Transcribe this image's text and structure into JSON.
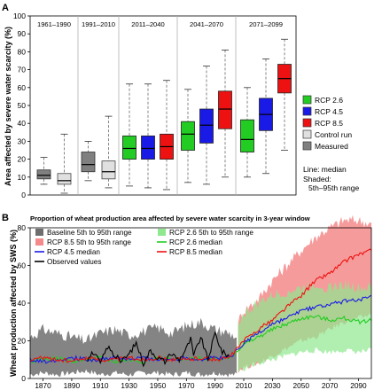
{
  "panelA": {
    "letter": "A",
    "ylabel": "Area affected by severe water scarcity (%)",
    "yticks": [
      0,
      10,
      20,
      30,
      40,
      50,
      60,
      70,
      80,
      90,
      100
    ],
    "period_labels": [
      "1961–1990",
      "1991–2010",
      "2011–2040",
      "2041–2070",
      "2071–2099"
    ],
    "legend": {
      "items": [
        {
          "label": "RCP 2.6",
          "color": "#22cc22"
        },
        {
          "label": "RCP 4.5",
          "color": "#1a1ae6"
        },
        {
          "label": "RCP 8.5",
          "color": "#ee1111"
        },
        {
          "label": "Control run",
          "color": "#e0e0e0"
        },
        {
          "label": "Measured",
          "color": "#808080"
        }
      ],
      "note_line": "Line: median",
      "note_shaded_1": "Shaded:",
      "note_shaded_2": "5th–95th range"
    }
  },
  "panelB": {
    "letter": "B",
    "title": "Proportion of wheat production area affected by severe water scarcity in 3-year window",
    "ylabel": "Wheat production affected by SWS (%)",
    "yticks": [
      0,
      20,
      40,
      60,
      80
    ],
    "xticks": [
      "1870",
      "1890",
      "1910",
      "1930",
      "1950",
      "1970",
      "1990",
      "2010",
      "2030",
      "2050",
      "2070",
      "2090"
    ],
    "legend": [
      {
        "label": "Baseline 5th to 95th range",
        "color": "#6e6e6e",
        "kind": "box"
      },
      {
        "label": "RCP 2.6 5th to 95th range",
        "color": "#8fe88f",
        "kind": "box"
      },
      {
        "label": "RCP 8.5 5th to 95th range",
        "color": "#f48a8a",
        "kind": "box"
      },
      {
        "label": "RCP 2.6 median",
        "color": "#22cc22",
        "kind": "line"
      },
      {
        "label": "RCP 4.5 median",
        "color": "#1a1ae6",
        "kind": "line"
      },
      {
        "label": "RCP 8.5 median",
        "color": "#ee1111",
        "kind": "line"
      },
      {
        "label": "Observed values",
        "color": "#000000",
        "kind": "line"
      }
    ]
  },
  "chart_data": [
    {
      "type": "box",
      "ylim": [
        0,
        100
      ],
      "groups": [
        {
          "period": "1961–1990",
          "boxes": [
            {
              "series": "Measured",
              "min": 6,
              "q1": 9,
              "median": 11,
              "q3": 14,
              "max": 21
            },
            {
              "series": "Control run",
              "min": 1,
              "q1": 6,
              "median": 8,
              "q3": 12,
              "max": 34
            }
          ]
        },
        {
          "period": "1991–2010",
          "boxes": [
            {
              "series": "Measured",
              "min": 8,
              "q1": 13,
              "median": 17,
              "q3": 24,
              "max": 30
            },
            {
              "series": "Control run",
              "min": 4,
              "q1": 9,
              "median": 13,
              "q3": 19,
              "max": 44
            }
          ]
        },
        {
          "period": "2011–2040",
          "boxes": [
            {
              "series": "RCP 2.6",
              "min": 5,
              "q1": 20,
              "median": 26,
              "q3": 33,
              "max": 62
            },
            {
              "series": "RCP 4.5",
              "min": 4,
              "q1": 20,
              "median": 26,
              "q3": 33,
              "max": 62
            },
            {
              "series": "RCP 8.5",
              "min": 3,
              "q1": 20,
              "median": 27,
              "q3": 34,
              "max": 64
            }
          ]
        },
        {
          "period": "2041–2070",
          "boxes": [
            {
              "series": "RCP 2.6",
              "min": 7,
              "q1": 25,
              "median": 34,
              "q3": 41,
              "max": 59
            },
            {
              "series": "RCP 4.5",
              "min": 6,
              "q1": 29,
              "median": 39,
              "q3": 48,
              "max": 72
            },
            {
              "series": "RCP 8.5",
              "min": 10,
              "q1": 37,
              "median": 48,
              "q3": 58,
              "max": 81
            }
          ]
        },
        {
          "period": "2071–2099",
          "boxes": [
            {
              "series": "RCP 2.6",
              "min": 10,
              "q1": 24,
              "median": 31,
              "q3": 42,
              "max": 60
            },
            {
              "series": "RCP 4.5",
              "min": 12,
              "q1": 36,
              "median": 45,
              "q3": 54,
              "max": 76
            },
            {
              "series": "RCP 8.5",
              "min": 25,
              "q1": 57,
              "median": 65,
              "q3": 73,
              "max": 87
            }
          ]
        }
      ]
    },
    {
      "type": "line",
      "xlim": [
        1861,
        2099
      ],
      "ylim": [
        0,
        80
      ],
      "series": [
        {
          "name": "Baseline 5th to 95th range",
          "kind": "band",
          "x": [
            1861,
            1870,
            1880,
            1890,
            1900,
            1910,
            1920,
            1930,
            1940,
            1950,
            1960,
            1970,
            1980,
            1990,
            2000,
            2005
          ],
          "lower": [
            2,
            3,
            2,
            3,
            4,
            2,
            3,
            2,
            3,
            3,
            2,
            3,
            2,
            3,
            2,
            2
          ],
          "upper": [
            22,
            26,
            24,
            22,
            20,
            24,
            26,
            23,
            25,
            27,
            24,
            28,
            30,
            26,
            24,
            22
          ]
        },
        {
          "name": "RCP 8.5 5th to 95th range",
          "kind": "band",
          "x": [
            2006,
            2010,
            2020,
            2030,
            2040,
            2050,
            2060,
            2070,
            2080,
            2090,
            2099
          ],
          "lower": [
            4,
            6,
            8,
            12,
            16,
            20,
            22,
            26,
            30,
            32,
            34
          ],
          "upper": [
            30,
            36,
            42,
            52,
            60,
            68,
            75,
            80,
            84,
            84,
            82
          ]
        },
        {
          "name": "RCP 2.6 5th to 95th range",
          "kind": "band",
          "x": [
            2006,
            2010,
            2020,
            2030,
            2040,
            2050,
            2060,
            2070,
            2080,
            2090,
            2099
          ],
          "lower": [
            4,
            5,
            8,
            10,
            12,
            14,
            15,
            14,
            15,
            14,
            15
          ],
          "upper": [
            30,
            34,
            40,
            44,
            46,
            48,
            50,
            48,
            50,
            48,
            48
          ]
        },
        {
          "name": "RCP 2.6 median",
          "kind": "line",
          "x": [
            1861,
            1870,
            1880,
            1890,
            1900,
            1910,
            1920,
            1930,
            1940,
            1950,
            1960,
            1970,
            1980,
            1990,
            2000,
            2010,
            2020,
            2030,
            2040,
            2050,
            2060,
            2070,
            2080,
            2090,
            2099
          ],
          "y": [
            9,
            10,
            11,
            9,
            10,
            11,
            9,
            10,
            9,
            11,
            10,
            10,
            11,
            10,
            11,
            18,
            22,
            26,
            29,
            32,
            33,
            31,
            32,
            30,
            31
          ]
        },
        {
          "name": "RCP 4.5 median",
          "kind": "line",
          "x": [
            1861,
            1870,
            1880,
            1890,
            1900,
            1910,
            1920,
            1930,
            1940,
            1950,
            1960,
            1970,
            1980,
            1990,
            2000,
            2010,
            2020,
            2030,
            2040,
            2050,
            2060,
            2070,
            2080,
            2090,
            2099
          ],
          "y": [
            10,
            9,
            10,
            11,
            10,
            10,
            11,
            10,
            11,
            10,
            10,
            11,
            10,
            11,
            11,
            19,
            24,
            29,
            32,
            36,
            38,
            39,
            41,
            42,
            43
          ]
        },
        {
          "name": "RCP 8.5 median",
          "kind": "line",
          "x": [
            1861,
            1870,
            1880,
            1890,
            1900,
            1910,
            1920,
            1930,
            1940,
            1950,
            1960,
            1970,
            1980,
            1990,
            2000,
            2010,
            2020,
            2030,
            2040,
            2050,
            2060,
            2070,
            2080,
            2090,
            2099
          ],
          "y": [
            10,
            11,
            10,
            9,
            11,
            10,
            10,
            11,
            10,
            11,
            10,
            10,
            11,
            10,
            11,
            20,
            26,
            31,
            38,
            44,
            52,
            56,
            62,
            66,
            68
          ]
        },
        {
          "name": "Observed values",
          "kind": "line",
          "x": [
            1901,
            1905,
            1910,
            1915,
            1920,
            1925,
            1930,
            1935,
            1940,
            1945,
            1950,
            1955,
            1960,
            1965,
            1970,
            1973,
            1975,
            1980,
            1985,
            1990,
            1995,
            2000
          ],
          "y": [
            10,
            14,
            8,
            17,
            12,
            9,
            13,
            19,
            8,
            15,
            11,
            9,
            13,
            10,
            16,
            21,
            12,
            22,
            10,
            24,
            14,
            12
          ]
        }
      ]
    }
  ]
}
